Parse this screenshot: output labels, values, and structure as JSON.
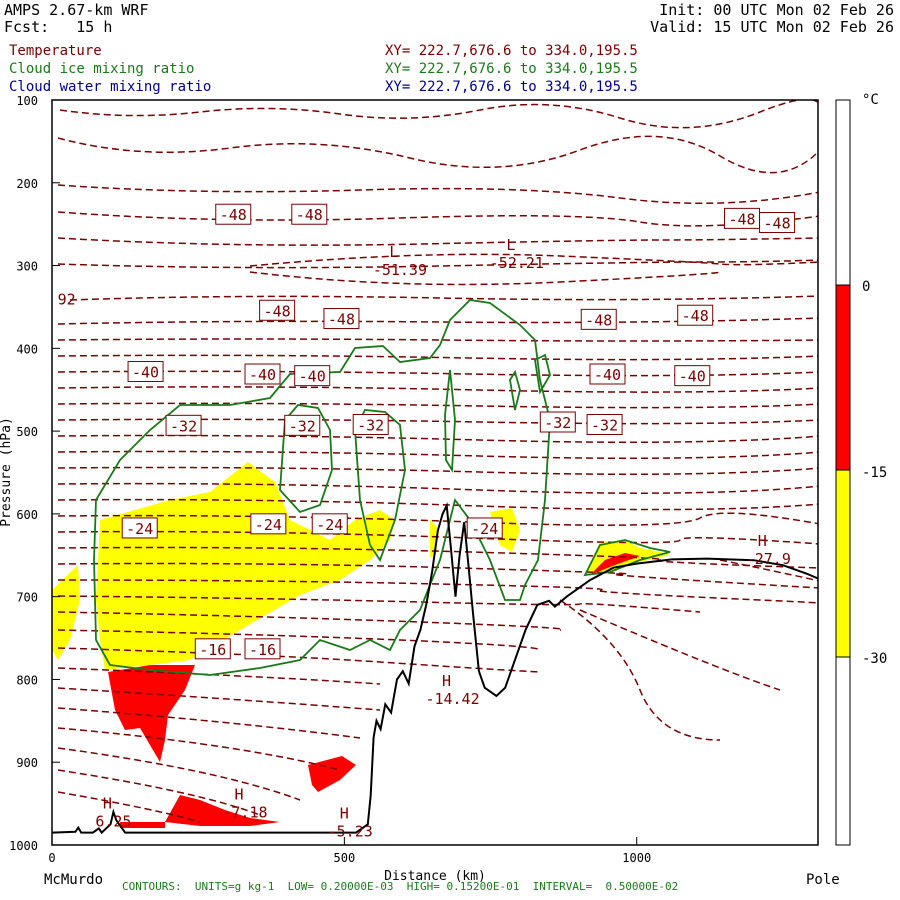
{
  "header": {
    "model": "AMPS 2.67-km WRF",
    "forecast": "Fcst:   15 h",
    "init": "Init: 00 UTC Mon 02 Feb 26",
    "valid": "Valid: 15 UTC Mon 02 Feb 26"
  },
  "fields": [
    {
      "name": "Temperature",
      "xy": "XY= 222.7,676.6 to 334.0,195.5",
      "color": "#7a0000"
    },
    {
      "name": "Cloud ice mixing ratio",
      "xy": "XY= 222.7,676.6 to 334.0,195.5",
      "color": "#1a7a1a"
    },
    {
      "name": "Cloud water mixing ratio",
      "xy": "XY= 222.7,676.6 to 334.0,195.5",
      "color": "#00008b"
    }
  ],
  "footer": "CONTOURS:  UNITS=g kg-1  LOW= 0.20000E-03  HIGH= 0.15200E-01  INTERVAL=  0.50000E-02",
  "chart_data": {
    "type": "cross-section contour",
    "xlabel": "Distance (km)",
    "ylabel": "Pressure (hPa)",
    "x_ticks": [
      0,
      500,
      1000
    ],
    "x_tick_labels": [
      "0",
      "500",
      "1000"
    ],
    "xlim": [
      0,
      1310
    ],
    "y_ticks": [
      100,
      200,
      300,
      400,
      500,
      600,
      700,
      800,
      900,
      1000
    ],
    "ylim": [
      1000,
      100
    ],
    "endpoint_left": "McMurdo",
    "endpoint_right": "Pole",
    "colorbar": {
      "unit": "°C",
      "tick_labels": [
        "0",
        "-15",
        "-30"
      ],
      "bands": [
        {
          "from": 0,
          "to": -15,
          "color": "#ff0000"
        },
        {
          "from": -15,
          "to": -30,
          "color": "#ffff00"
        }
      ]
    },
    "contour_labels": [
      {
        "text": "-48",
        "x": 310,
        "p": 238
      },
      {
        "text": "-48",
        "x": 440,
        "p": 238
      },
      {
        "text": "-48",
        "x": 1180,
        "p": 243
      },
      {
        "text": "-48",
        "x": 1240,
        "p": 248
      },
      {
        "text": "-48",
        "x": 385,
        "p": 354
      },
      {
        "text": "-48",
        "x": 495,
        "p": 364
      },
      {
        "text": "-48",
        "x": 935,
        "p": 365
      },
      {
        "text": "-48",
        "x": 1100,
        "p": 360
      },
      {
        "text": "-40",
        "x": 160,
        "p": 428
      },
      {
        "text": "-40",
        "x": 360,
        "p": 431
      },
      {
        "text": "-40",
        "x": 445,
        "p": 433
      },
      {
        "text": "-40",
        "x": 950,
        "p": 431
      },
      {
        "text": "-40",
        "x": 1095,
        "p": 433
      },
      {
        "text": "-32",
        "x": 225,
        "p": 493
      },
      {
        "text": "-32",
        "x": 428,
        "p": 493
      },
      {
        "text": "-32",
        "x": 545,
        "p": 492
      },
      {
        "text": "-32",
        "x": 865,
        "p": 489
      },
      {
        "text": "-32",
        "x": 945,
        "p": 492
      },
      {
        "text": "-24",
        "x": 150,
        "p": 617
      },
      {
        "text": "-24",
        "x": 370,
        "p": 612
      },
      {
        "text": "-24",
        "x": 475,
        "p": 612
      },
      {
        "text": "-24",
        "x": 740,
        "p": 617
      },
      {
        "text": "-16",
        "x": 275,
        "p": 763
      },
      {
        "text": "-16",
        "x": 360,
        "p": 763
      }
    ],
    "extrema": [
      {
        "type": "L",
        "value": "-51.39",
        "x": 595,
        "p": 302
      },
      {
        "type": "L",
        "value": "-52.21",
        "x": 795,
        "p": 293
      },
      {
        "type": "H",
        "value": "-27.9",
        "x": 1225,
        "p": 651
      },
      {
        "type": "H",
        "value": "-14.42",
        "x": 685,
        "p": 820
      },
      {
        "type": "H",
        "value": "6.25",
        "x": 105,
        "p": 968
      },
      {
        "type": "H",
        "value": "-7.18",
        "x": 330,
        "p": 957
      },
      {
        "type": "H",
        "value": "-5.23",
        "x": 510,
        "p": 980
      }
    ],
    "partial_labels": [
      {
        "text": "92",
        "x": 25,
        "p": 341
      }
    ],
    "terrain": [
      [
        0,
        985
      ],
      [
        40,
        984
      ],
      [
        45,
        979
      ],
      [
        50,
        985
      ],
      [
        70,
        985
      ],
      [
        80,
        980
      ],
      [
        85,
        985
      ],
      [
        100,
        975
      ],
      [
        105,
        960
      ],
      [
        110,
        970
      ],
      [
        115,
        975
      ],
      [
        120,
        980
      ],
      [
        125,
        985
      ],
      [
        520,
        985
      ],
      [
        540,
        975
      ],
      [
        545,
        940
      ],
      [
        550,
        870
      ],
      [
        555,
        850
      ],
      [
        562,
        860
      ],
      [
        570,
        830
      ],
      [
        580,
        840
      ],
      [
        590,
        800
      ],
      [
        600,
        790
      ],
      [
        610,
        805
      ],
      [
        620,
        760
      ],
      [
        630,
        740
      ],
      [
        640,
        710
      ],
      [
        650,
        670
      ],
      [
        660,
        620
      ],
      [
        668,
        600
      ],
      [
        675,
        590
      ],
      [
        682,
        640
      ],
      [
        690,
        700
      ],
      [
        697,
        650
      ],
      [
        705,
        610
      ],
      [
        712,
        660
      ],
      [
        720,
        720
      ],
      [
        730,
        790
      ],
      [
        740,
        810
      ],
      [
        760,
        820
      ],
      [
        775,
        810
      ],
      [
        790,
        780
      ],
      [
        810,
        740
      ],
      [
        830,
        710
      ],
      [
        850,
        705
      ],
      [
        860,
        712
      ],
      [
        880,
        700
      ],
      [
        920,
        680
      ],
      [
        960,
        665
      ],
      [
        1000,
        660
      ],
      [
        1060,
        655
      ],
      [
        1120,
        654
      ],
      [
        1200,
        656
      ],
      [
        1250,
        662
      ],
      [
        1290,
        672
      ],
      [
        1310,
        678
      ]
    ]
  }
}
